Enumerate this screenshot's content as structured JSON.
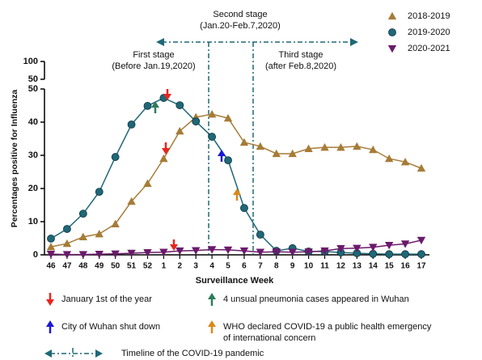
{
  "chart_data": {
    "type": "line",
    "y_label": "Percentages positive for Influenza",
    "x_label": "Surveillance Week",
    "categories": [
      "46",
      "47",
      "48",
      "49",
      "50",
      "51",
      "52",
      "1",
      "2",
      "3",
      "4",
      "5",
      "6",
      "7",
      "8",
      "9",
      "10",
      "11",
      "12",
      "13",
      "14",
      "15",
      "16",
      "17"
    ],
    "ylim": [
      0,
      50
    ],
    "yticks": [
      0,
      10,
      20,
      30,
      40,
      50
    ],
    "upper_ylim": [
      50,
      100
    ],
    "upper_yticks": [
      50,
      100
    ],
    "legend": "top-right",
    "series": [
      {
        "name": "2018-2019",
        "color": "#a67c37",
        "marker": "triangle-up",
        "values": [
          2.4,
          3.4,
          5.4,
          6.3,
          9.3,
          16.1,
          21.5,
          29,
          37.3,
          41.5,
          42.4,
          41.2,
          33.9,
          32.7,
          30.5,
          30.5,
          32,
          32.4,
          32.4,
          32.7,
          31.7,
          29,
          28,
          26.1
        ]
      },
      {
        "name": "2019-2020",
        "color": "#1f6877",
        "marker": "circle",
        "values": [
          4.9,
          7.8,
          12.4,
          19,
          29.5,
          39.3,
          44.9,
          47.3,
          45.1,
          40.2,
          35.6,
          28.5,
          14.1,
          6.1,
          1.2,
          2,
          1,
          1,
          0.7,
          0.5,
          0.3,
          0.2,
          0.2,
          0.2
        ]
      },
      {
        "name": "2020-2021",
        "color": "#6b1a6b",
        "marker": "triangle-down",
        "values": [
          0.2,
          0.1,
          0.1,
          0.2,
          0.3,
          0.5,
          0.7,
          0.8,
          1.2,
          1.3,
          1.6,
          1.5,
          1.2,
          0.8,
          0.9,
          0.8,
          0.9,
          1.2,
          1.9,
          2,
          2.3,
          2.9,
          3.3,
          4.4
        ]
      }
    ],
    "stages": [
      {
        "lines": [
          "First stage",
          "(Before Jan.19,2020)"
        ]
      },
      {
        "lines": [
          "Second stage",
          "(Jan.20-Feb.7,2020)"
        ]
      },
      {
        "lines": [
          "Third stage",
          "(after Feb.8,2020)"
        ]
      }
    ],
    "event_legend": [
      {
        "label": [
          "January 1st of the year"
        ],
        "color": "#e8251f"
      },
      {
        "label": [
          "4 unsual pneumonia cases appeared in Wuhan"
        ],
        "color": "#2e7d5b"
      },
      {
        "label": [
          "City of Wuhan shut down"
        ],
        "color": "#1a1ad6"
      },
      {
        "label": [
          "WHO declared COVID-19 a public health emergency",
          "of international concern"
        ],
        "color": "#d98a1a"
      }
    ],
    "timeline_label": "Timeline of the COVID-19 pandemic"
  }
}
